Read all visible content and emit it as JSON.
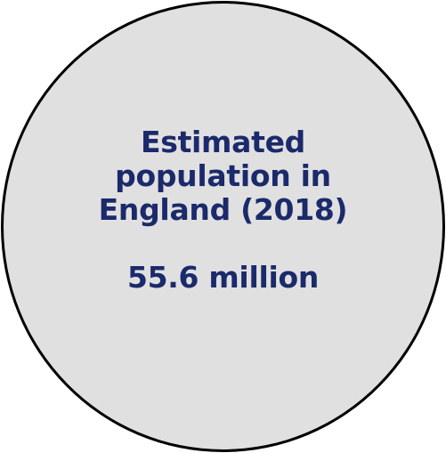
{
  "callout": {
    "title_lines": [
      "Estimated",
      "population in",
      "England (2018)"
    ],
    "value": "55.6 million",
    "colors": {
      "text": "#1b2a6b",
      "fill": "#e0e0e0",
      "border": "#000000"
    }
  }
}
